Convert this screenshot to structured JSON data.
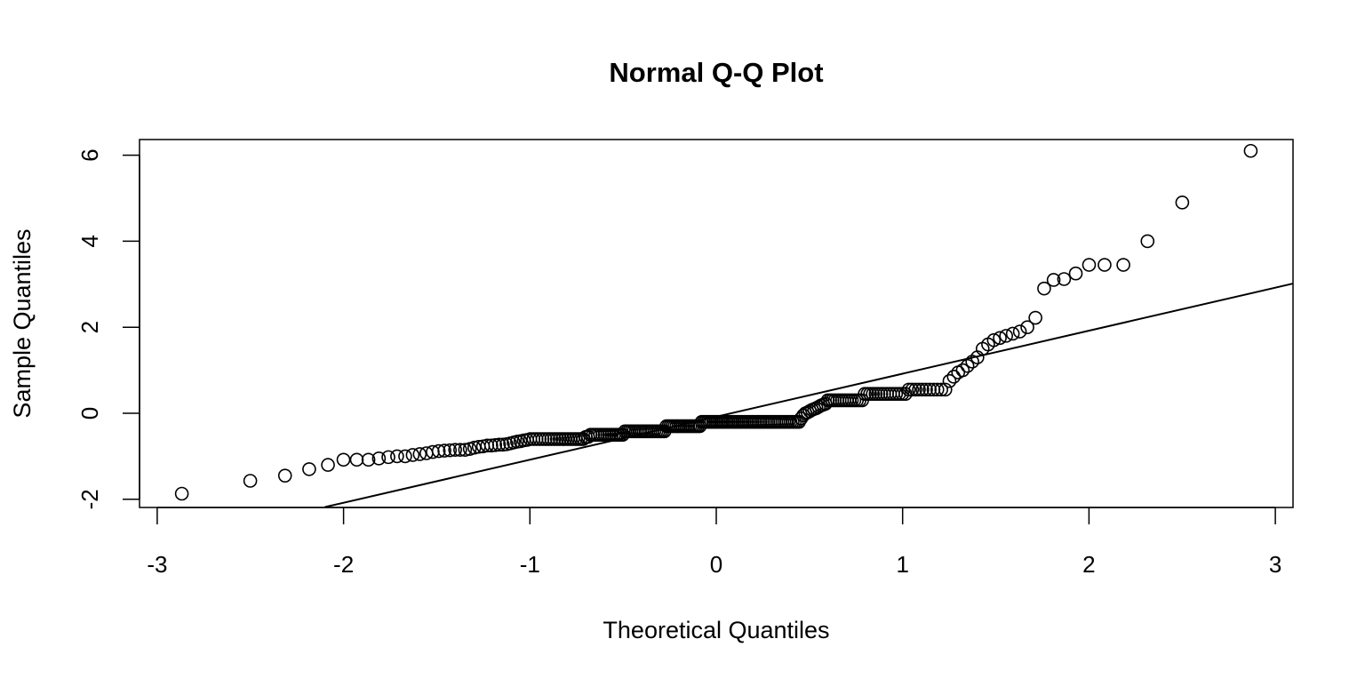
{
  "chart_data": {
    "type": "scatter",
    "title": "Normal Q-Q Plot",
    "xlabel": "Theoretical Quantiles",
    "ylabel": "Sample Quantiles",
    "xlim": [
      -3.15,
      3.1
    ],
    "ylim": [
      -2.2,
      6.4
    ],
    "x_ticks": [
      "-3",
      "-2",
      "-1",
      "0",
      "1",
      "2",
      "3"
    ],
    "y_ticks": [
      "-2",
      "0",
      "2",
      "4",
      "6"
    ],
    "grid": false,
    "marker": "open-circle",
    "reference_line": {
      "intercept": -0.08,
      "slope": 1.0
    },
    "sample": [
      -1.87,
      -1.57,
      -1.45,
      -1.3,
      -1.2,
      -1.08,
      -1.08,
      -1.08,
      -1.05,
      -1.02,
      -1.0,
      -1.0,
      -0.97,
      -0.95,
      -0.93,
      -0.9,
      -0.88,
      -0.87,
      -0.86,
      -0.85,
      -0.85,
      -0.85,
      -0.83,
      -0.8,
      -0.78,
      -0.77,
      -0.75,
      -0.75,
      -0.74,
      -0.73,
      -0.73,
      -0.72,
      -0.7,
      -0.68,
      -0.66,
      -0.65,
      -0.63,
      -0.62,
      -0.6,
      -0.6,
      -0.6,
      -0.6,
      -0.6,
      -0.6,
      -0.6,
      -0.6,
      -0.6,
      -0.6,
      -0.6,
      -0.6,
      -0.6,
      -0.6,
      -0.6,
      -0.6,
      -0.6,
      -0.6,
      -0.6,
      -0.6,
      -0.55,
      -0.55,
      -0.5,
      -0.5,
      -0.5,
      -0.5,
      -0.5,
      -0.5,
      -0.5,
      -0.5,
      -0.5,
      -0.5,
      -0.5,
      -0.5,
      -0.5,
      -0.5,
      -0.5,
      -0.42,
      -0.42,
      -0.42,
      -0.42,
      -0.42,
      -0.42,
      -0.42,
      -0.42,
      -0.42,
      -0.42,
      -0.42,
      -0.42,
      -0.42,
      -0.42,
      -0.42,
      -0.42,
      -0.42,
      -0.42,
      -0.42,
      -0.42,
      -0.3,
      -0.3,
      -0.3,
      -0.3,
      -0.3,
      -0.3,
      -0.3,
      -0.3,
      -0.3,
      -0.3,
      -0.3,
      -0.3,
      -0.3,
      -0.3,
      -0.3,
      -0.3,
      -0.3,
      -0.3,
      -0.2,
      -0.2,
      -0.2,
      -0.2,
      -0.2,
      -0.2,
      -0.2,
      -0.2,
      -0.2,
      -0.2,
      -0.2,
      -0.2,
      -0.2,
      -0.2,
      -0.2,
      -0.2,
      -0.2,
      -0.2,
      -0.2,
      -0.2,
      -0.2,
      -0.2,
      -0.2,
      -0.2,
      -0.2,
      -0.2,
      -0.2,
      -0.2,
      -0.2,
      -0.2,
      -0.2,
      -0.2,
      -0.2,
      -0.2,
      -0.2,
      -0.2,
      -0.2,
      -0.2,
      -0.2,
      -0.2,
      -0.2,
      -0.2,
      -0.2,
      -0.2,
      -0.2,
      -0.2,
      -0.2,
      -0.2,
      -0.2,
      -0.2,
      -0.12,
      -0.05,
      0.0,
      0.02,
      0.05,
      0.08,
      0.1,
      0.12,
      0.15,
      0.18,
      0.2,
      0.22,
      0.3,
      0.3,
      0.3,
      0.3,
      0.3,
      0.3,
      0.3,
      0.3,
      0.3,
      0.3,
      0.3,
      0.3,
      0.3,
      0.3,
      0.3,
      0.45,
      0.45,
      0.45,
      0.45,
      0.45,
      0.45,
      0.45,
      0.45,
      0.45,
      0.45,
      0.45,
      0.45,
      0.45,
      0.45,
      0.45,
      0.55,
      0.55,
      0.55,
      0.55,
      0.55,
      0.55,
      0.55,
      0.55,
      0.55,
      0.55,
      0.55,
      0.75,
      0.85,
      0.95,
      1.0,
      1.1,
      1.2,
      1.3,
      1.5,
      1.6,
      1.7,
      1.75,
      1.8,
      1.85,
      1.9,
      2.0,
      2.22,
      2.9,
      3.1,
      3.12,
      3.25,
      3.45,
      3.45,
      3.45,
      4.0,
      4.9,
      6.1
    ]
  }
}
